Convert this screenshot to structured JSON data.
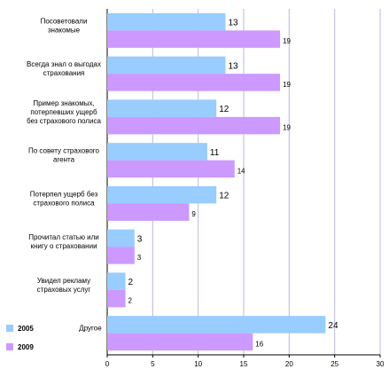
{
  "chart_data": {
    "type": "bar",
    "orientation": "horizontal",
    "categories": [
      [
        "Посоветовали",
        "знакомые"
      ],
      [
        "Всегда знал о выгодах",
        "страхования"
      ],
      [
        "Пример знакомых,",
        "потерпевших ущерб",
        "без страхового полиса"
      ],
      [
        "По совету страхового",
        "агента"
      ],
      [
        "Потерпел ущерб без",
        "страхового полиса"
      ],
      [
        "Прочитал статью или",
        "книгу о страховании"
      ],
      [
        "Увидел рекламу",
        "страховых услуг"
      ],
      [
        "Другое"
      ]
    ],
    "series": [
      {
        "name": "2005",
        "color": "#99ccff",
        "values": [
          13,
          13,
          12,
          11,
          12,
          3,
          2,
          24
        ]
      },
      {
        "name": "2009",
        "color": "#cc99ff",
        "values": [
          19,
          19,
          19,
          14,
          9,
          3,
          2,
          16
        ]
      }
    ],
    "xlim": [
      0,
      30
    ],
    "xticks": [
      0,
      5,
      10,
      15,
      20,
      25,
      30
    ],
    "grid": "vertical",
    "legend_position": "bottom-left"
  }
}
